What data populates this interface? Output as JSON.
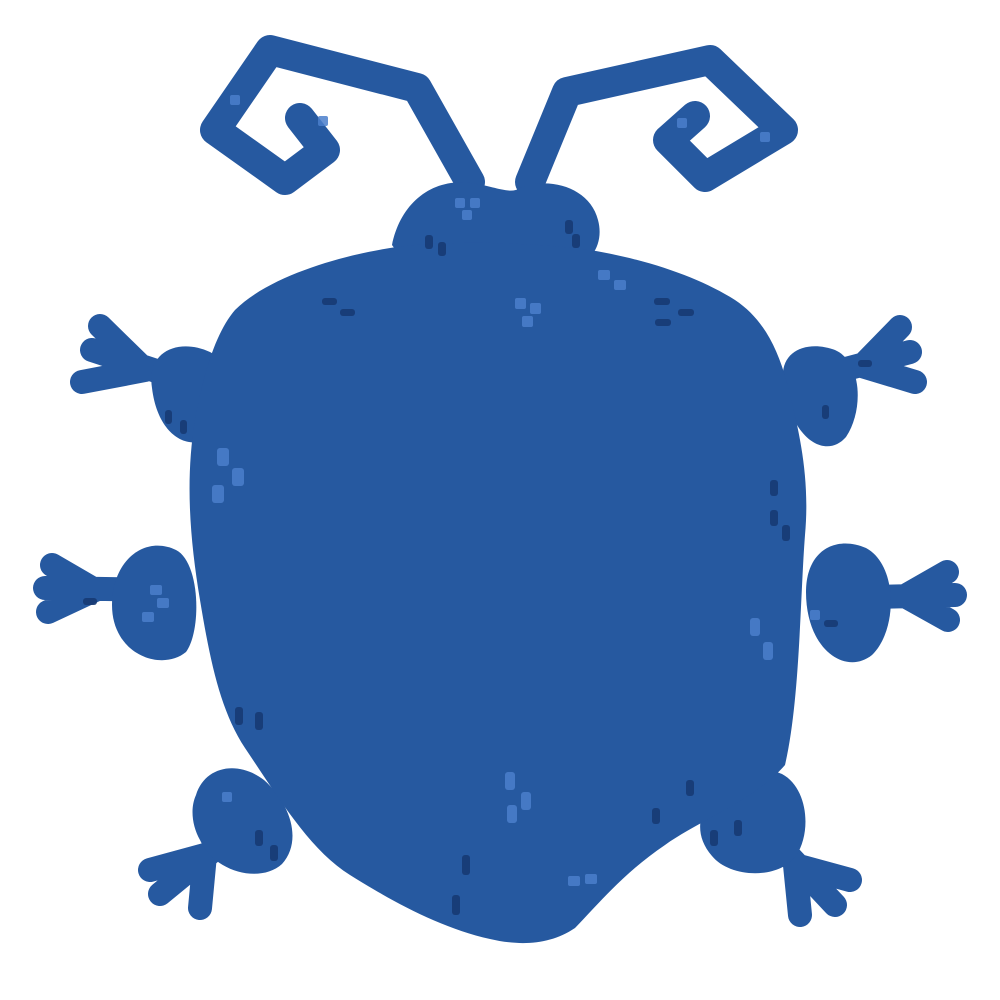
{
  "image": {
    "subject": "beetle",
    "colors": {
      "background": "#ffffff",
      "body": "#2659a0",
      "dark_speckle": "#173a73",
      "light_speckle": "#4b7fcb"
    }
  }
}
